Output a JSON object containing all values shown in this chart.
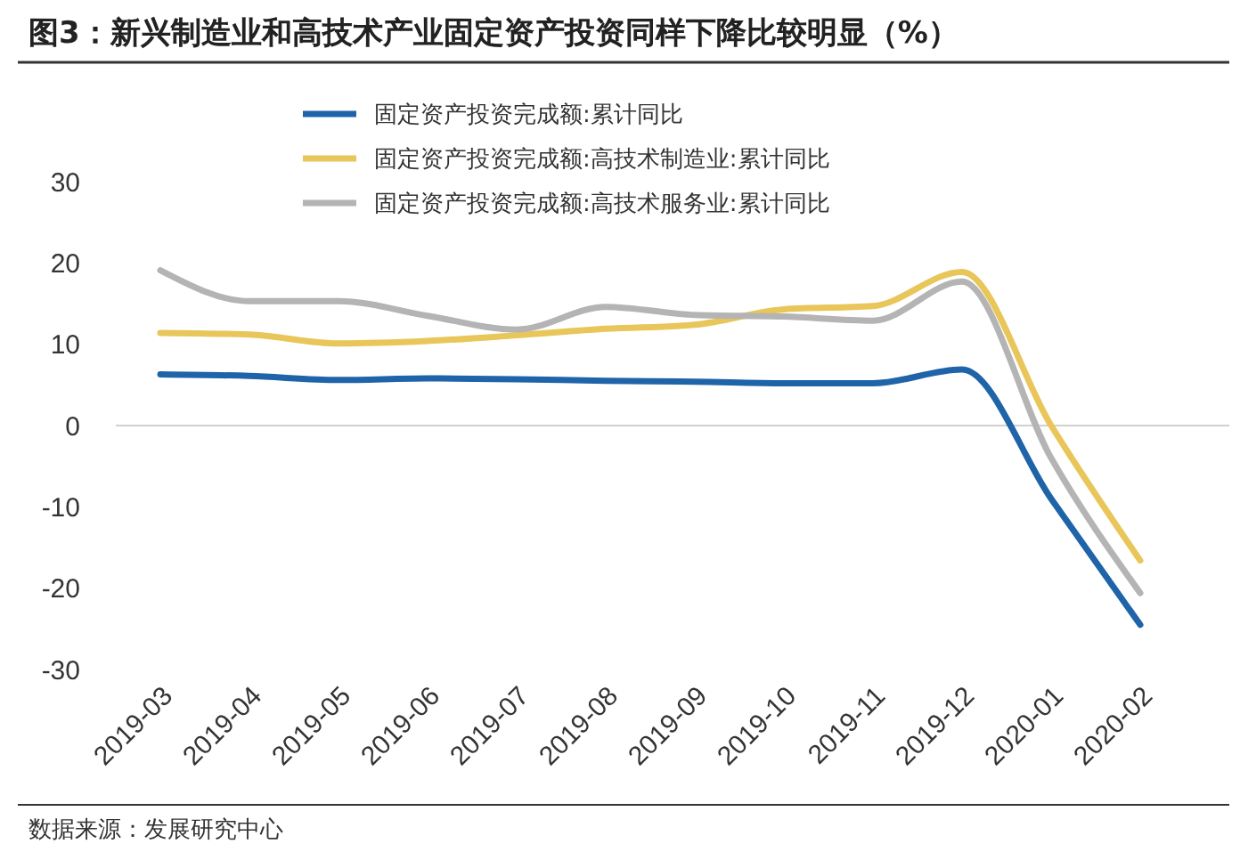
{
  "chart_data": {
    "type": "line",
    "title": "图3：新兴制造业和高技术产业固定资产投资同样下降比较明显（%）",
    "categories": [
      "2019-03",
      "2019-04",
      "2019-05",
      "2019-06",
      "2019-07",
      "2019-08",
      "2019-09",
      "2019-10",
      "2019-11",
      "2019-12",
      "2020-01",
      "2020-02"
    ],
    "series": [
      {
        "name": "固定资产投资完成额:累计同比",
        "color": "#1f64a8",
        "values": [
          6.3,
          6.1,
          5.6,
          5.8,
          5.7,
          5.5,
          5.4,
          5.2,
          5.2,
          6.9,
          -9,
          -24.5
        ]
      },
      {
        "name": "固定资产投资完成额:高技术制造业:累计同比",
        "color": "#e8c65a",
        "values": [
          11.4,
          11.2,
          10.1,
          10.4,
          11.1,
          11.9,
          12.4,
          14.3,
          14.7,
          18.9,
          0,
          -16.6
        ]
      },
      {
        "name": "固定资产投资完成额:高技术服务业:累计同比",
        "color": "#b4b4b4",
        "values": [
          19.1,
          15.3,
          15.3,
          13.5,
          11.8,
          14.6,
          13.6,
          13.4,
          12.9,
          17.7,
          -4,
          -20.6
        ]
      }
    ],
    "ylim": [
      -30,
      30
    ],
    "yticks": [
      -30,
      -20,
      -10,
      0,
      10,
      20,
      30
    ],
    "grid": false,
    "ref_lines": [
      {
        "axis": "y",
        "value": 0,
        "color": "#d0d0d0"
      }
    ],
    "legend": "top",
    "marker": "none",
    "line_style": "solid",
    "annotations": [
      "数据来源：发展研究中心"
    ]
  }
}
